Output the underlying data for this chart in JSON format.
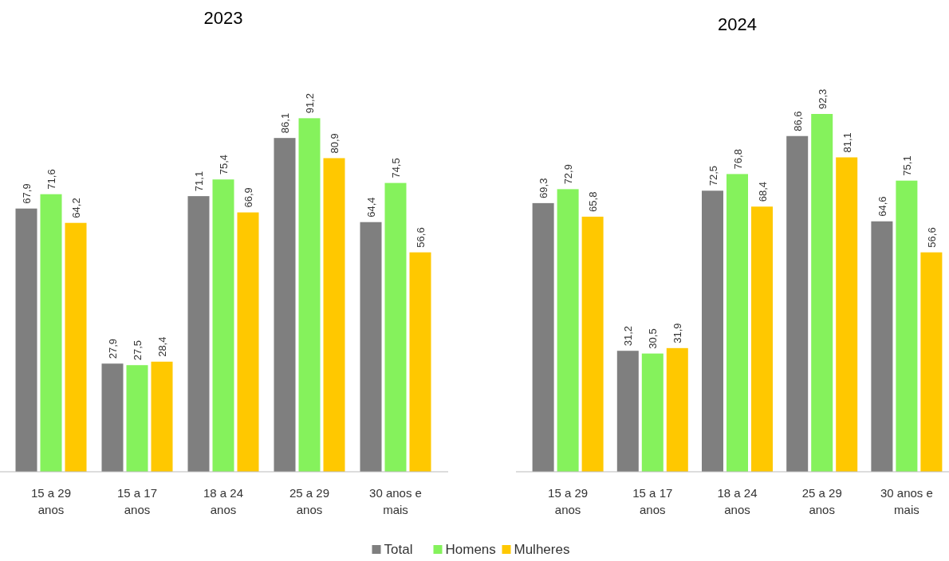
{
  "chart_data": [
    {
      "type": "bar",
      "title": "2023",
      "categories": [
        "15 a 29 anos",
        "15 a 17 anos",
        "18 a 24 anos",
        "25 a 29 anos",
        "30 anos e mais"
      ],
      "series": [
        {
          "name": "Total",
          "color": "#7f7f7f",
          "values": [
            67.9,
            27.9,
            71.1,
            86.1,
            64.4
          ],
          "value_labels": [
            "67,9",
            "27,9",
            "71,1",
            "86,1",
            "64,4"
          ]
        },
        {
          "name": "Homens",
          "color": "#85f25c",
          "values": [
            71.6,
            27.5,
            75.4,
            91.2,
            74.5
          ],
          "value_labels": [
            "71,6",
            "27,5",
            "75,4",
            "91,2",
            "74,5"
          ]
        },
        {
          "name": "Mulheres",
          "color": "#ffc800",
          "values": [
            64.2,
            28.4,
            66.9,
            80.9,
            56.6
          ],
          "value_labels": [
            "64,2",
            "28,4",
            "66,9",
            "80,9",
            "56,6"
          ]
        }
      ],
      "legend": "bottom"
    },
    {
      "type": "bar",
      "title": "2024",
      "categories": [
        "15 a 29 anos",
        "15 a 17 anos",
        "18 a 24 anos",
        "25 a 29 anos",
        "30 anos e mais"
      ],
      "series": [
        {
          "color": "#7f7f7f",
          "values": [
            69.3,
            31.2,
            72.5,
            86.6,
            64.6
          ],
          "value_labels": [
            "69,3",
            "31,2",
            "72,5",
            "86,6",
            "64,6"
          ]
        },
        {
          "color": "#85f25c",
          "values": [
            72.9,
            30.5,
            76.8,
            92.3,
            75.1
          ],
          "value_labels": [
            "72,9",
            "30,5",
            "76,8",
            "92,3",
            "75,1"
          ]
        },
        {
          "color": "#ffc800",
          "values": [
            65.8,
            31.9,
            68.4,
            81.1,
            56.6
          ],
          "value_labels": [
            "65,8",
            "31,9",
            "68,4",
            "81,1",
            "56,6"
          ]
        }
      ]
    }
  ]
}
